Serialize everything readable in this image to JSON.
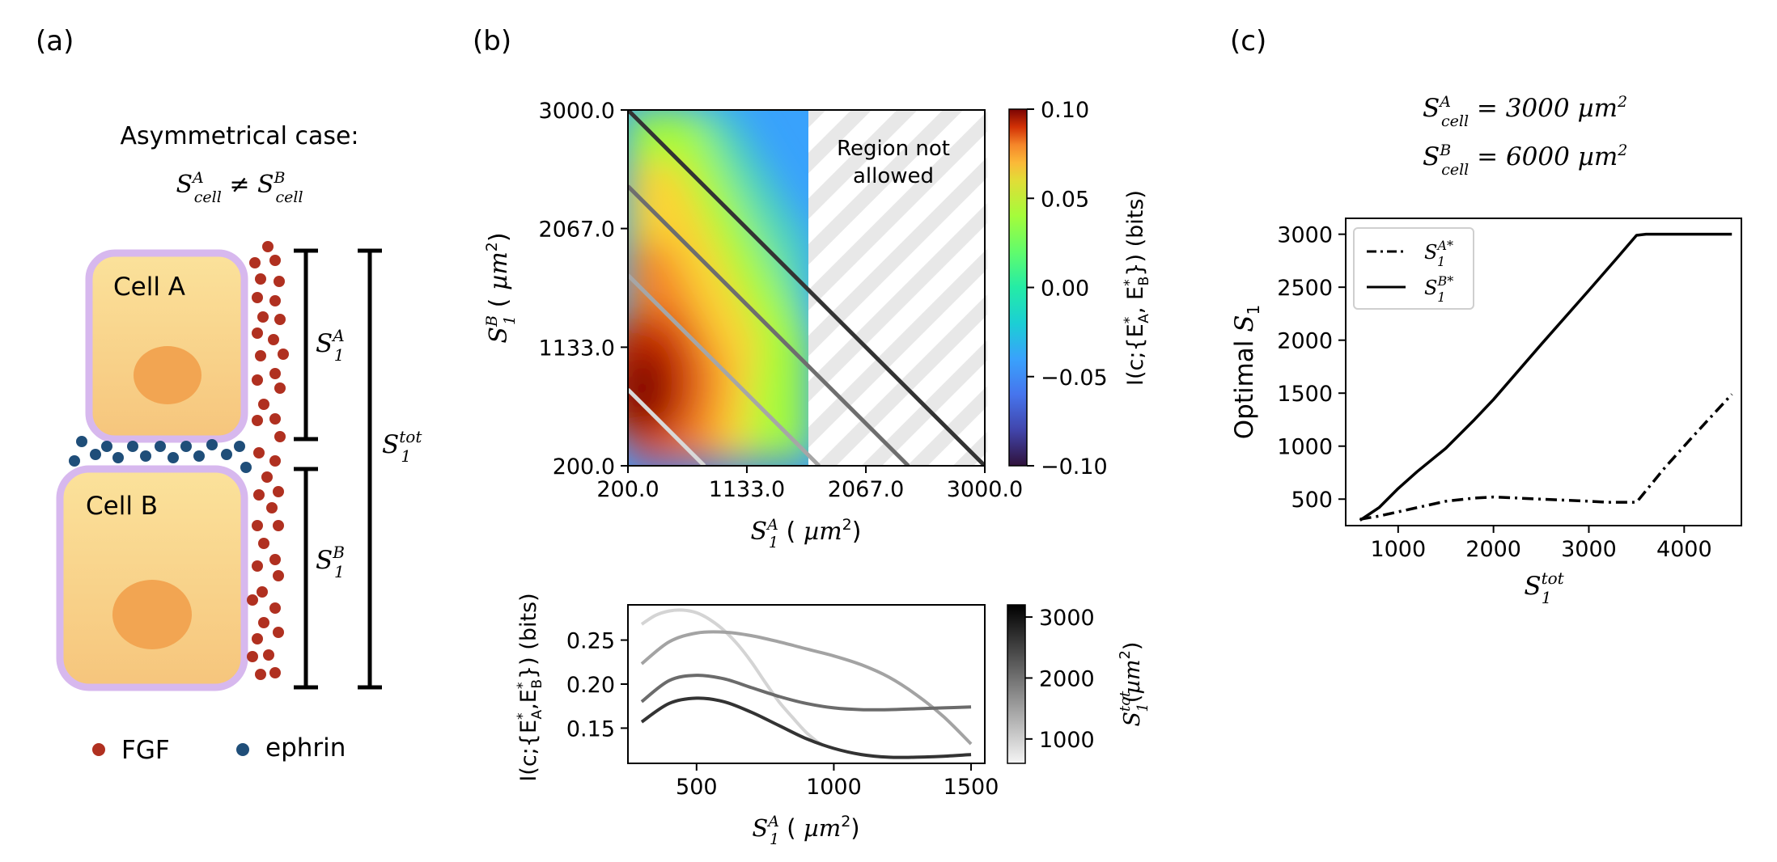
{
  "panels": {
    "a": {
      "label": "(a)",
      "title": "Asymmetrical case:",
      "condition": "S_cell^A ≠ S_cell^B",
      "cell_a": "Cell A",
      "cell_b": "Cell B",
      "dim_a": "S1^A",
      "dim_b": "S1^B",
      "dim_tot": "S1^tot",
      "legend": [
        {
          "label": "FGF",
          "color": "#b03020"
        },
        {
          "label": "ephrin",
          "color": "#1f4e79"
        }
      ]
    },
    "b": {
      "label": "(b)",
      "region_note": [
        "Region not",
        "allowed"
      ],
      "colorbar_label": "I(c;{E*A, E*B})  (bits)",
      "colorbar2_label": "S1tot(µm²)"
    },
    "c": {
      "label": "(c)",
      "cond_a": "S_cell^A = 3000 µm²",
      "cond_b": "S_cell^B = 6000 µm²"
    }
  },
  "chart_data": [
    {
      "type": "heatmap",
      "xlabel": "S1^A ( µm²)",
      "ylabel": "S1^B ( µm²)",
      "x_ticks": [
        "200.0",
        "1133.0",
        "2067.0",
        "3000.0"
      ],
      "y_ticks": [
        "200.0",
        "1133.0",
        "2067.0",
        "3000.0"
      ],
      "xlim": [
        200,
        3000
      ],
      "ylim": [
        200,
        3000
      ],
      "allowed_max_x": 1750,
      "colorbar": {
        "label": "I(c;{E*A, E*B})  (bits)",
        "ticks": [
          "0.10",
          "0.05",
          "0.00",
          "−0.05",
          "−0.10"
        ],
        "range": [
          -0.1,
          0.1
        ],
        "colormap": "turbo"
      },
      "peak": {
        "x": 400,
        "y": 800,
        "value": 0.1
      },
      "series": [
        {
          "stot": 1000,
          "shade": "#d9d9d9"
        },
        {
          "stot": 1900,
          "shade": "#a6a6a6"
        },
        {
          "stot": 2600,
          "shade": "#6e6e6e"
        },
        {
          "stot": 3200,
          "shade": "#333333"
        }
      ]
    },
    {
      "type": "line",
      "xlabel": "S1^A ( µm²)",
      "ylabel": "I(c;{E*A,E*B}) (bits)",
      "x_ticks": [
        "500",
        "1000",
        "1500"
      ],
      "y_ticks": [
        "0.15",
        "0.20",
        "0.25"
      ],
      "xlim": [
        250,
        1550
      ],
      "ylim": [
        0.11,
        0.29
      ],
      "colorbar": {
        "label": "S1tot(µm²)",
        "ticks": [
          "3000",
          "2000",
          "1000"
        ],
        "range": [
          600,
          3200
        ]
      },
      "series": [
        {
          "stot": 1000,
          "color": "#d4d4d4",
          "x": [
            300,
            350,
            400,
            450,
            500,
            550,
            600,
            650,
            700,
            750,
            800,
            850,
            900,
            950
          ],
          "y": [
            0.268,
            0.278,
            0.283,
            0.284,
            0.281,
            0.273,
            0.261,
            0.245,
            0.225,
            0.202,
            0.18,
            0.162,
            0.145,
            0.132
          ]
        },
        {
          "stot": 1900,
          "color": "#a3a3a3",
          "x": [
            300,
            400,
            500,
            600,
            700,
            800,
            900,
            1000,
            1100,
            1200,
            1300,
            1400,
            1500
          ],
          "y": [
            0.223,
            0.248,
            0.258,
            0.259,
            0.255,
            0.248,
            0.24,
            0.232,
            0.222,
            0.208,
            0.188,
            0.163,
            0.132
          ]
        },
        {
          "stot": 2600,
          "color": "#6b6b6b",
          "x": [
            300,
            400,
            500,
            600,
            700,
            800,
            900,
            1000,
            1100,
            1200,
            1300,
            1400,
            1500
          ],
          "y": [
            0.18,
            0.204,
            0.21,
            0.206,
            0.196,
            0.186,
            0.178,
            0.173,
            0.171,
            0.171,
            0.172,
            0.173,
            0.174
          ]
        },
        {
          "stot": 3200,
          "color": "#333333",
          "x": [
            300,
            400,
            500,
            600,
            700,
            800,
            900,
            1000,
            1100,
            1200,
            1300,
            1400,
            1500
          ],
          "y": [
            0.157,
            0.178,
            0.184,
            0.18,
            0.168,
            0.153,
            0.138,
            0.127,
            0.12,
            0.117,
            0.117,
            0.118,
            0.12
          ]
        }
      ]
    },
    {
      "type": "line",
      "xlabel": "S1^tot",
      "ylabel": "Optimal S1",
      "x_ticks": [
        "1000",
        "2000",
        "3000",
        "4000"
      ],
      "y_ticks": [
        "500",
        "1000",
        "1500",
        "2000",
        "2500",
        "3000"
      ],
      "xlim": [
        450,
        4600
      ],
      "ylim": [
        250,
        3150
      ],
      "legend_position": "top-left",
      "series": [
        {
          "name": "S1^A*",
          "style": "dashdot",
          "x": [
            600,
            800,
            1000,
            1200,
            1500,
            1800,
            2000,
            2500,
            3000,
            3200,
            3500,
            3800,
            4100,
            4500
          ],
          "y": [
            310,
            340,
            380,
            420,
            480,
            510,
            520,
            500,
            480,
            470,
            470,
            800,
            1100,
            1490
          ]
        },
        {
          "name": "S1^B*",
          "style": "solid",
          "x": [
            600,
            800,
            1000,
            1200,
            1500,
            1800,
            2000,
            2500,
            3000,
            3300,
            3500,
            3600,
            4000,
            4500
          ],
          "y": [
            300,
            420,
            600,
            760,
            980,
            1250,
            1440,
            1960,
            2470,
            2780,
            2990,
            3000,
            3000,
            3000
          ]
        }
      ]
    }
  ]
}
